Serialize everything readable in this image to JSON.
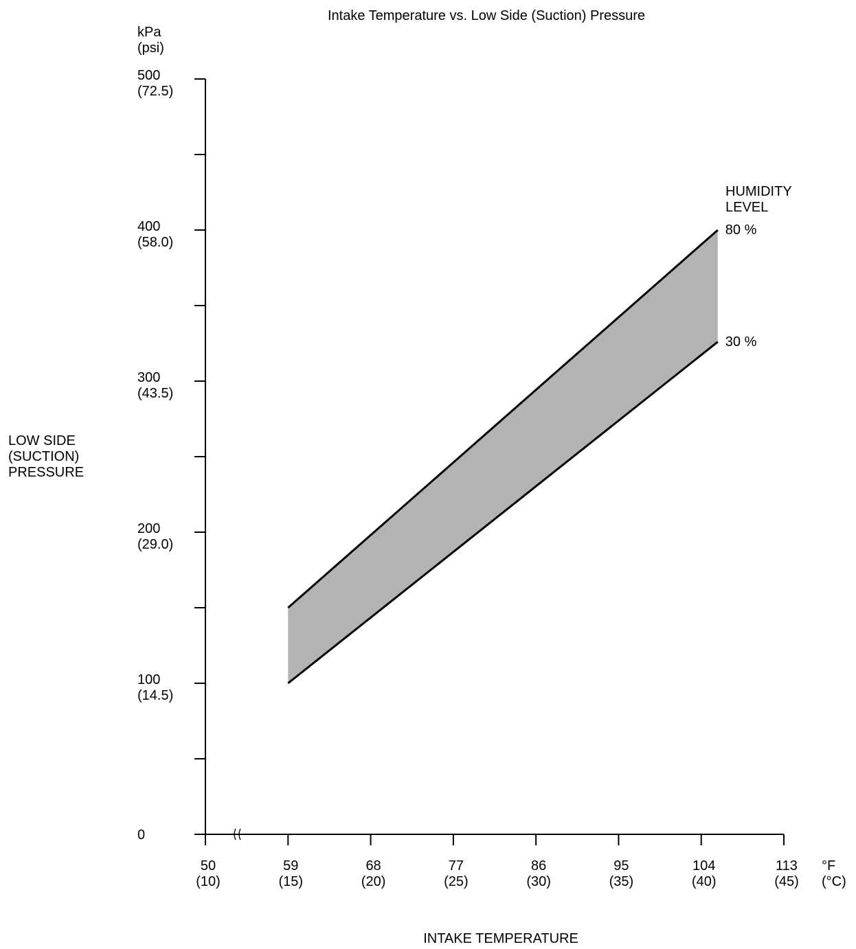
{
  "chart_data": {
    "type": "band",
    "title": "Intake Temperature vs. Low Side (Suction) Pressure",
    "y_unit_label": "kPa\n(psi)",
    "x_unit_label": "°F\n(°C)",
    "ylabel": "LOW SIDE\n(SUCTION)\nPRESSURE",
    "xlabel": "INTAKE TEMPERATURE",
    "annotation": "HUMIDITY\nLEVEL",
    "band_color": "#b3b3b3",
    "xlim": [
      50,
      113
    ],
    "ylim": [
      0,
      500
    ],
    "xticks": [
      {
        "value": 50,
        "label": "50\n(10)"
      },
      {
        "value": 59,
        "label": "59\n(15)"
      },
      {
        "value": 68,
        "label": "68\n(20)"
      },
      {
        "value": 77,
        "label": "77\n(25)"
      },
      {
        "value": 86,
        "label": "86\n(30)"
      },
      {
        "value": 95,
        "label": "95\n(35)"
      },
      {
        "value": 104,
        "label": "104\n(40)"
      },
      {
        "value": 113,
        "label": "113\n(45)"
      }
    ],
    "yticks": [
      0,
      {
        "value": 100,
        "label": "100\n(14.5)"
      },
      {
        "value": 200,
        "label": "200\n(29.0)"
      },
      {
        "value": 300,
        "label": "300\n(43.5)"
      },
      {
        "value": 400,
        "label": "400\n(58.0)"
      },
      {
        "value": 500,
        "label": "500\n(72.5)"
      }
    ],
    "yminor_ticks": [
      50,
      150,
      250,
      350,
      450
    ],
    "series": [
      {
        "name": "80 %",
        "color": "#000000",
        "x": [
          59,
          105.8
        ],
        "values": [
          150,
          400
        ]
      },
      {
        "name": "30 %",
        "color": "#000000",
        "x": [
          59,
          105.8
        ],
        "values": [
          100,
          326
        ]
      }
    ]
  }
}
